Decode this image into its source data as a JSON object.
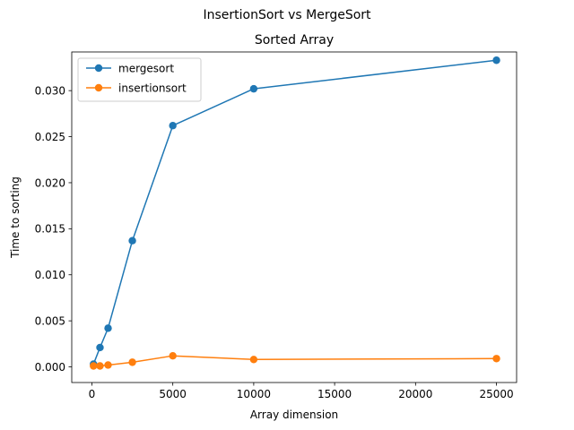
{
  "figure": {
    "suptitle": "InsertionSort vs MergeSort"
  },
  "chart_data": {
    "type": "line",
    "title": "Sorted Array",
    "xlabel": "Array dimension",
    "ylabel": "Time to sorting",
    "xlim": [
      -1245,
      26245
    ],
    "ylim": [
      -0.0017,
      0.0342
    ],
    "xticks": [
      0,
      5000,
      10000,
      15000,
      20000,
      25000
    ],
    "xtick_labels": [
      "0",
      "5000",
      "10000",
      "15000",
      "20000",
      "25000"
    ],
    "yticks": [
      0.0,
      0.005,
      0.01,
      0.015,
      0.02,
      0.025,
      0.03
    ],
    "ytick_labels": [
      "0.000",
      "0.005",
      "0.010",
      "0.015",
      "0.020",
      "0.025",
      "0.030"
    ],
    "grid": false,
    "legend_position": "upper-left",
    "x": [
      100,
      500,
      1000,
      2500,
      5000,
      10000,
      25000
    ],
    "series": [
      {
        "name": "mergesort",
        "color": "#1f77b4",
        "marker": "circle",
        "values": [
          0.0003,
          0.0021,
          0.0042,
          0.0137,
          0.0262,
          0.0302,
          0.0333
        ]
      },
      {
        "name": "insertionsort",
        "color": "#ff7f0e",
        "marker": "circle",
        "values": [
          0.0001,
          0.0001,
          0.0002,
          0.0005,
          0.0012,
          0.0008,
          0.0009
        ]
      }
    ]
  }
}
